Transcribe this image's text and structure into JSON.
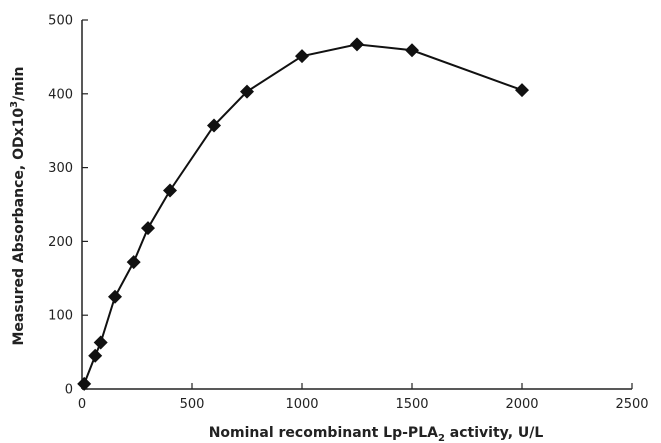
{
  "chart_data": {
    "type": "scatter",
    "title": "",
    "xlabel": {
      "pre": "Nominal recombinant Lp-PLA",
      "sub": "2",
      "post": " activity, U/L"
    },
    "ylabel": {
      "pre": "Measured Absorbance, ODx10",
      "sup": "3",
      "post": "/min"
    },
    "xlim": [
      0,
      2500
    ],
    "ylim": [
      0,
      500
    ],
    "xticks": [
      0,
      500,
      1000,
      1500,
      2000,
      2500
    ],
    "yticks": [
      0,
      100,
      200,
      300,
      400,
      500
    ],
    "grid": false,
    "marker": "diamond",
    "series": [
      {
        "x": [
          10,
          60,
          85,
          150,
          235,
          300,
          400,
          600,
          750,
          1000,
          1250,
          1500,
          2000
        ],
        "y": [
          7,
          45,
          63,
          125,
          172,
          218,
          269,
          357,
          403,
          451,
          467,
          459,
          405
        ]
      }
    ]
  },
  "colors": {
    "line": "#111111",
    "marker": "#111111",
    "axis": "#222222"
  }
}
